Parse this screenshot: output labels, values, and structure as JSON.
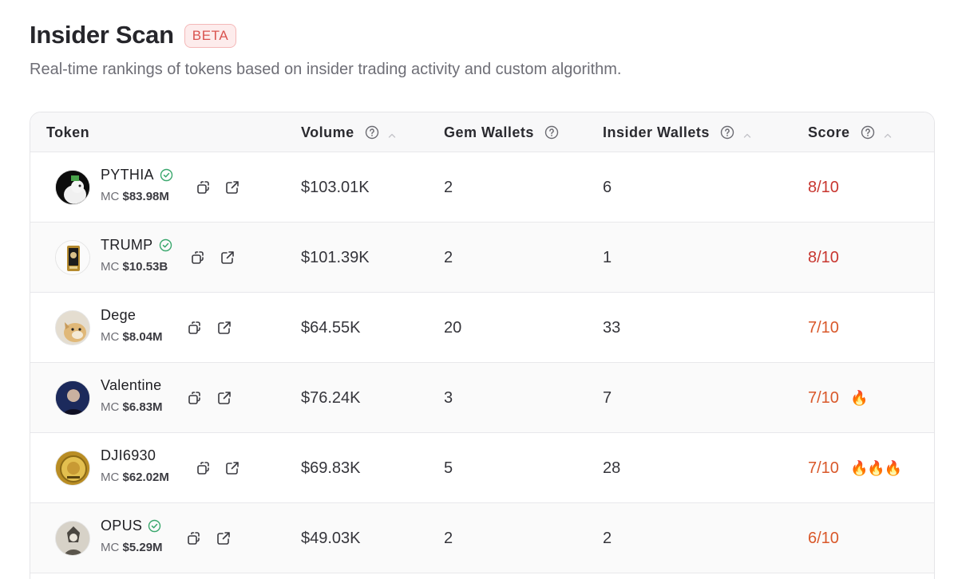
{
  "header": {
    "title": "Insider Scan",
    "badge": "BETA",
    "subtitle": "Real-time rankings of tokens based on insider trading activity and custom algorithm."
  },
  "table": {
    "columns": {
      "token": "Token",
      "volume": "Volume",
      "gem_wallets": "Gem Wallets",
      "insider_wallets": "Insider Wallets",
      "score": "Score"
    },
    "rows": [
      {
        "name": "PYTHIA",
        "verified": true,
        "mc_label": "MC",
        "mc": "$83.98M",
        "volume": "$103.01K",
        "gem_wallets": "2",
        "insider_wallets": "6",
        "score": "8/10",
        "fires": ""
      },
      {
        "name": "TRUMP",
        "verified": true,
        "mc_label": "MC",
        "mc": "$10.53B",
        "volume": "$101.39K",
        "gem_wallets": "2",
        "insider_wallets": "1",
        "score": "8/10",
        "fires": ""
      },
      {
        "name": "Dege",
        "verified": false,
        "mc_label": "MC",
        "mc": "$8.04M",
        "volume": "$64.55K",
        "gem_wallets": "20",
        "insider_wallets": "33",
        "score": "7/10",
        "fires": ""
      },
      {
        "name": "Valentine",
        "verified": false,
        "mc_label": "MC",
        "mc": "$6.83M",
        "volume": "$76.24K",
        "gem_wallets": "3",
        "insider_wallets": "7",
        "score": "7/10",
        "fires": "🔥"
      },
      {
        "name": "DJI6930",
        "verified": false,
        "mc_label": "MC",
        "mc": "$62.02M",
        "volume": "$69.83K",
        "gem_wallets": "5",
        "insider_wallets": "28",
        "score": "7/10",
        "fires": "🔥🔥🔥"
      },
      {
        "name": "OPUS",
        "verified": true,
        "mc_label": "MC",
        "mc": "$5.29M",
        "volume": "$49.03K",
        "gem_wallets": "2",
        "insider_wallets": "2",
        "score": "6/10",
        "fires": ""
      }
    ]
  },
  "colors": {
    "score_high": "#c8362f",
    "score_mid": "#d9582a",
    "verified": "#3aa76d",
    "beta": "#d9534f"
  },
  "icons": [
    "help-circle-icon",
    "sort-up-icon",
    "verified-check-icon",
    "copy-icon",
    "external-link-icon",
    "fire-icon"
  ]
}
